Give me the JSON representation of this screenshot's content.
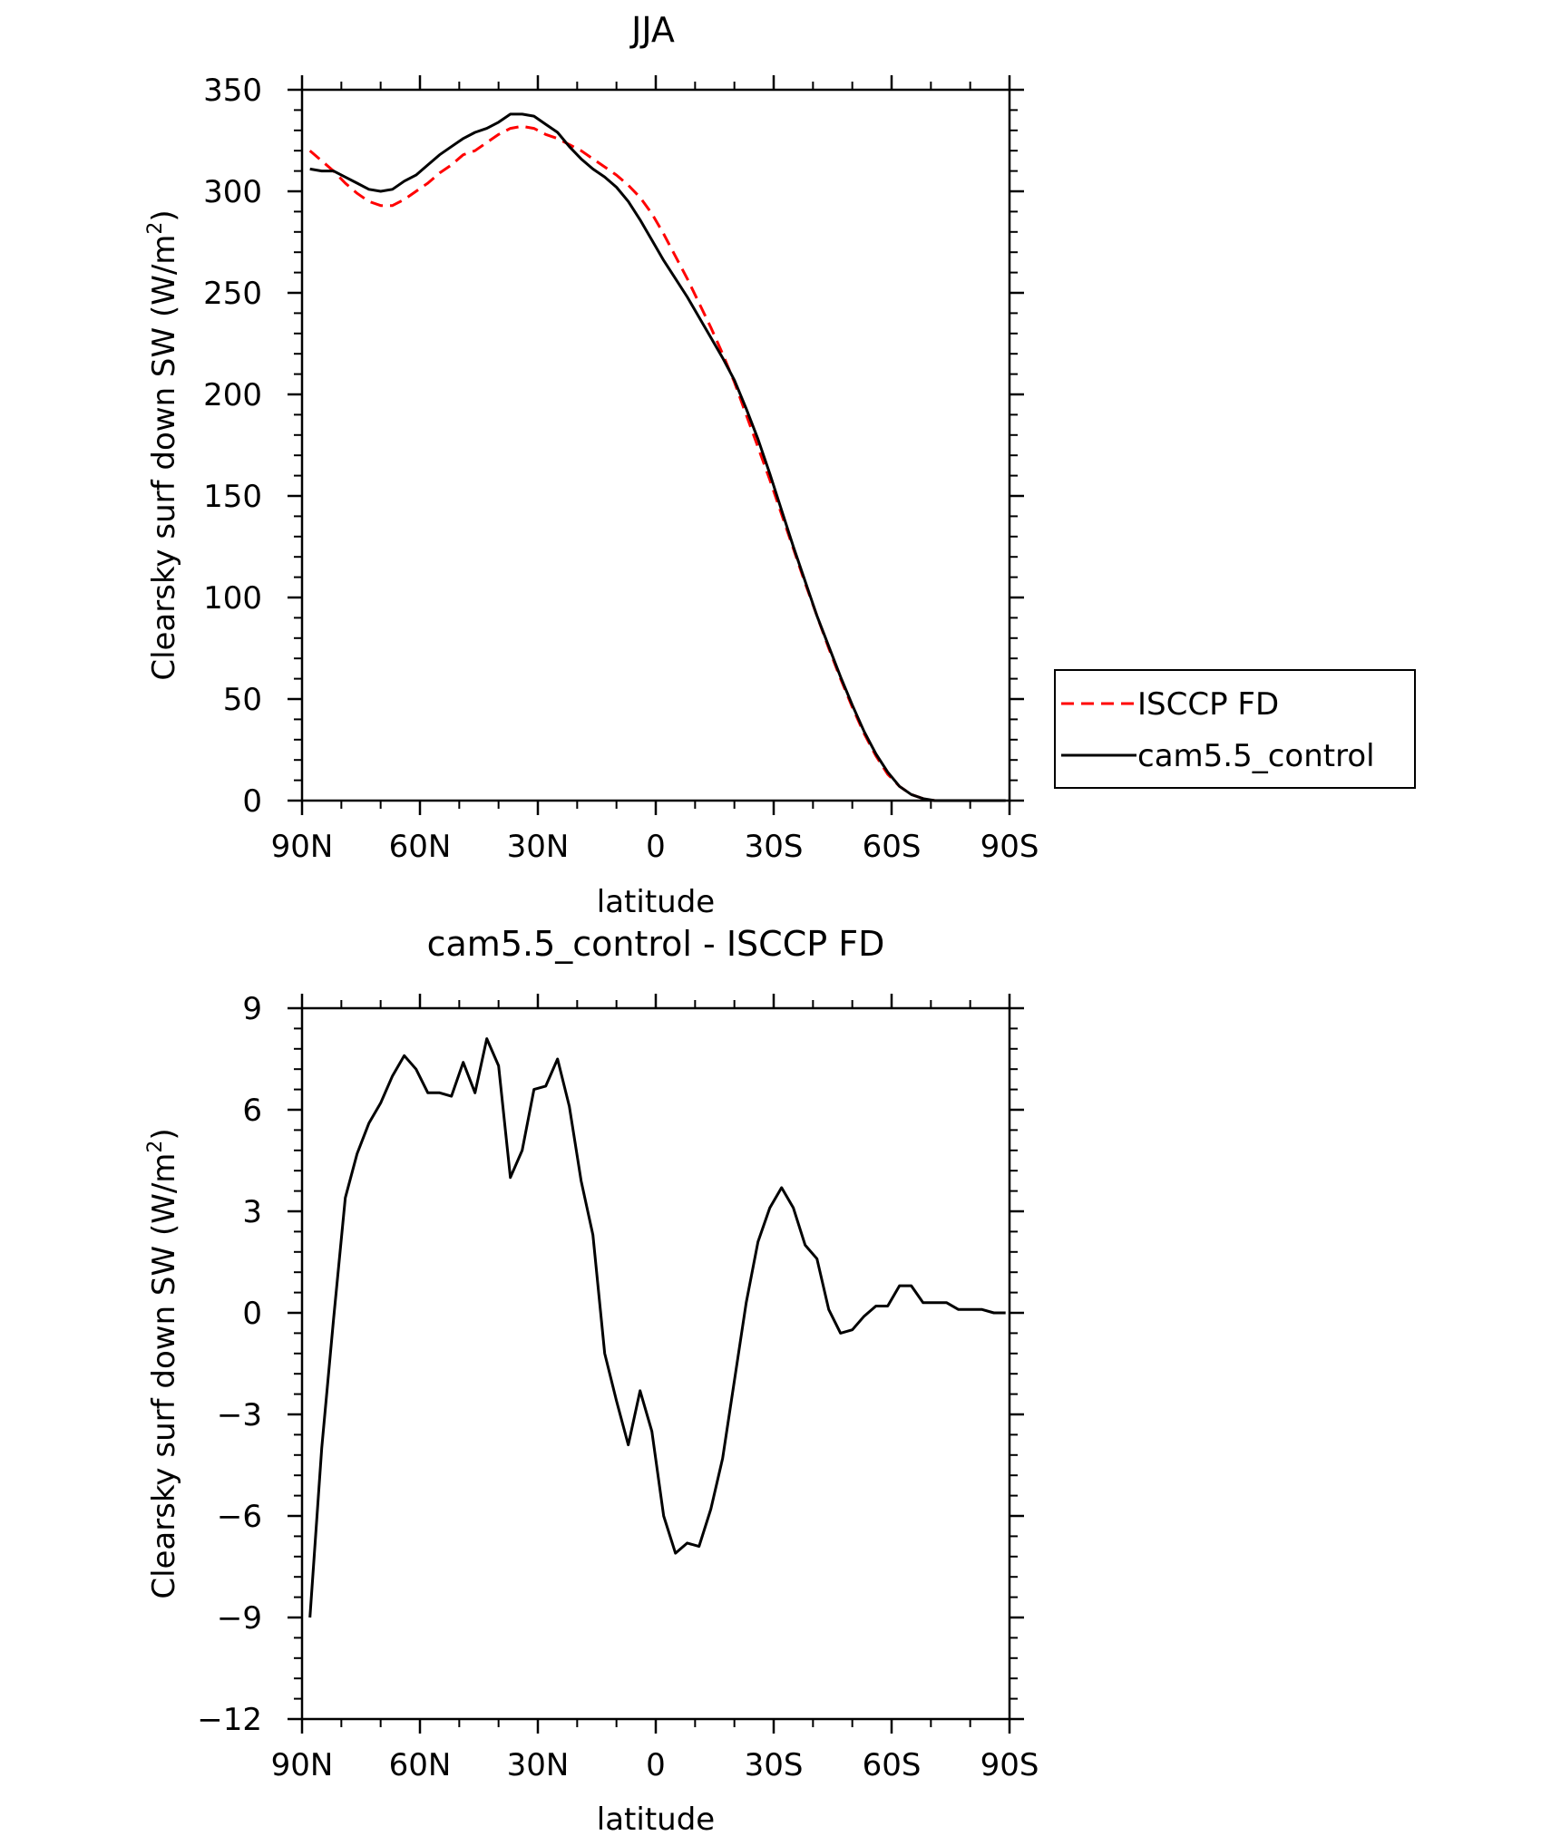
{
  "chart_data": [
    {
      "type": "line",
      "title": "JJA",
      "xlabel": "latitude",
      "ylabel": "Clearsky surf down SW (W/m",
      "ylabel_sup": "2",
      "ylabel_tail": ")",
      "xlim": [
        90,
        -90
      ],
      "ylim": [
        0,
        350
      ],
      "xticks": [
        {
          "value": 90,
          "label": "90N"
        },
        {
          "value": 60,
          "label": "60N"
        },
        {
          "value": 30,
          "label": "30N"
        },
        {
          "value": 0,
          "label": "0"
        },
        {
          "value": -30,
          "label": "30S"
        },
        {
          "value": -60,
          "label": "60S"
        },
        {
          "value": -90,
          "label": "90S"
        }
      ],
      "yticks": [
        {
          "value": 0,
          "label": "0"
        },
        {
          "value": 50,
          "label": "50"
        },
        {
          "value": 100,
          "label": "100"
        },
        {
          "value": 150,
          "label": "150"
        },
        {
          "value": 200,
          "label": "200"
        },
        {
          "value": 250,
          "label": "250"
        },
        {
          "value": 300,
          "label": "300"
        },
        {
          "value": 350,
          "label": "350"
        }
      ],
      "legend_position": "right",
      "series": [
        {
          "name": "ISCCP FD",
          "color": "#ff0000",
          "style": "dashed",
          "x": [
            88,
            85,
            82,
            79,
            76,
            73,
            70,
            67,
            64,
            61,
            58,
            55,
            52,
            49,
            46,
            43,
            40,
            37,
            34,
            31,
            28,
            25,
            22,
            19,
            16,
            13,
            10,
            7,
            4,
            1,
            -2,
            -5,
            -8,
            -11,
            -14,
            -17,
            -20,
            -23,
            -26,
            -29,
            -32,
            -35,
            -38,
            -41,
            -44,
            -47,
            -50,
            -53,
            -56,
            -59,
            -62,
            -65,
            -68,
            -71,
            -74,
            -77,
            -80,
            -83,
            -86,
            -89
          ],
          "y": [
            320,
            315,
            310,
            304,
            299,
            295,
            293,
            293,
            296,
            300,
            304,
            309,
            313,
            318,
            320,
            324,
            328,
            331,
            332,
            331,
            328,
            326,
            323,
            320,
            316,
            312,
            308,
            303,
            297,
            289,
            279,
            268,
            257,
            245,
            233,
            220,
            206,
            190,
            174,
            158,
            141,
            124,
            107,
            91,
            75,
            60,
            46,
            33,
            22,
            13,
            7,
            3,
            1,
            0,
            0,
            0,
            0,
            0,
            0,
            0
          ]
        },
        {
          "name": "cam5.5_control",
          "color": "#000000",
          "style": "solid",
          "x": [
            88,
            85,
            82,
            79,
            76,
            73,
            70,
            67,
            64,
            61,
            58,
            55,
            52,
            49,
            46,
            43,
            40,
            37,
            34,
            31,
            28,
            25,
            22,
            19,
            16,
            13,
            10,
            7,
            4,
            1,
            -2,
            -5,
            -8,
            -11,
            -14,
            -17,
            -20,
            -23,
            -26,
            -29,
            -32,
            -35,
            -38,
            -41,
            -44,
            -47,
            -50,
            -53,
            -56,
            -59,
            -62,
            -65,
            -68,
            -71,
            -74,
            -77,
            -80,
            -83,
            -86,
            -89
          ],
          "y": [
            311,
            310,
            310,
            307,
            304,
            301,
            300,
            301,
            305,
            308,
            313,
            318,
            322,
            326,
            329,
            331,
            334,
            338,
            338,
            337,
            333,
            329,
            322,
            316,
            311,
            307,
            302,
            295,
            286,
            276,
            266,
            257,
            248,
            238,
            228,
            218,
            207,
            193,
            178,
            161,
            143,
            125,
            108,
            91,
            76,
            61,
            47,
            34,
            23,
            14,
            7,
            3,
            1,
            0,
            0,
            0,
            0,
            0,
            0,
            0
          ]
        }
      ]
    },
    {
      "type": "line",
      "title": "cam5.5_control - ISCCP FD",
      "xlabel": "latitude",
      "ylabel": "Clearsky surf down SW (W/m",
      "ylabel_sup": "2",
      "ylabel_tail": ")",
      "xlim": [
        90,
        -90
      ],
      "ylim": [
        -12,
        9
      ],
      "xticks": [
        {
          "value": 90,
          "label": "90N"
        },
        {
          "value": 60,
          "label": "60N"
        },
        {
          "value": 30,
          "label": "30N"
        },
        {
          "value": 0,
          "label": "0"
        },
        {
          "value": -30,
          "label": "30S"
        },
        {
          "value": -60,
          "label": "60S"
        },
        {
          "value": -90,
          "label": "90S"
        }
      ],
      "yticks": [
        {
          "value": -12,
          "label": "−12"
        },
        {
          "value": -9,
          "label": "−9"
        },
        {
          "value": -6,
          "label": "−6"
        },
        {
          "value": -3,
          "label": "−3"
        },
        {
          "value": 0,
          "label": "0"
        },
        {
          "value": 3,
          "label": "3"
        },
        {
          "value": 6,
          "label": "6"
        },
        {
          "value": 9,
          "label": "9"
        }
      ],
      "series": [
        {
          "name": "cam5.5_control - ISCCP FD",
          "color": "#000000",
          "style": "solid",
          "x": [
            88,
            85,
            82,
            79,
            76,
            73,
            70,
            67,
            64,
            61,
            58,
            55,
            52,
            49,
            46,
            43,
            40,
            37,
            34,
            31,
            28,
            25,
            22,
            19,
            16,
            13,
            10,
            7,
            4,
            1,
            -2,
            -5,
            -8,
            -11,
            -14,
            -17,
            -20,
            -23,
            -26,
            -29,
            -32,
            -35,
            -38,
            -41,
            -44,
            -47,
            -50,
            -53,
            -56,
            -59,
            -62,
            -65,
            -68,
            -71,
            -74,
            -77,
            -80,
            -83,
            -86,
            -89
          ],
          "y": [
            -9.0,
            -4.0,
            -0.2,
            3.4,
            4.7,
            5.6,
            6.2,
            7.0,
            7.6,
            7.2,
            6.5,
            6.5,
            6.4,
            7.4,
            6.5,
            8.1,
            7.3,
            4.0,
            4.8,
            6.6,
            6.7,
            7.5,
            6.1,
            3.9,
            2.3,
            -1.2,
            -2.6,
            -3.9,
            -2.3,
            -3.5,
            -6.0,
            -7.1,
            -6.8,
            -6.9,
            -5.8,
            -4.3,
            -2.0,
            0.3,
            2.1,
            3.1,
            3.7,
            3.1,
            2.0,
            1.6,
            0.1,
            -0.6,
            -0.5,
            -0.1,
            0.2,
            0.2,
            0.8,
            0.8,
            0.3,
            0.3,
            0.3,
            0.1,
            0.1,
            0.1,
            0.0,
            0.0
          ]
        }
      ]
    }
  ]
}
